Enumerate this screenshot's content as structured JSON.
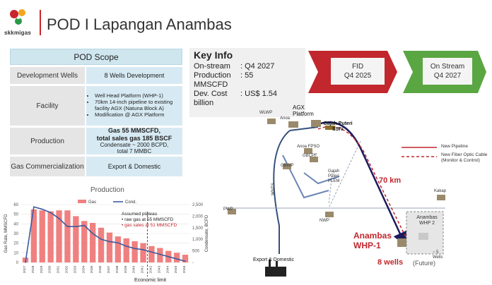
{
  "header": {
    "logo_text": "skkmigas",
    "title": "POD I Lapangan Anambas"
  },
  "pod_scope": {
    "title": "POD Scope",
    "rows": [
      {
        "label": "Development Wells",
        "value": "8 Wells Development"
      },
      {
        "label": "Facility",
        "items": [
          "Well Head Platform (WHP-1)",
          "70km 14-inch pipeline to existing facility AGX (Natuna Block A)",
          "Modification @ AGX Platform"
        ]
      },
      {
        "label": "Production",
        "line1": "Gas 55 MMSCFD,",
        "line2": "total sales gas 185 BSCF",
        "line3": "Condensate ~ 2000 BCPD,",
        "line4": "total 7 MMBC"
      },
      {
        "label": "Gas Commercialization",
        "value": "Export & Domestic"
      }
    ]
  },
  "key_info": {
    "title": "Key Info",
    "rows": [
      {
        "label": "On-stream",
        "value": ": Q4 2027"
      },
      {
        "label": "Production",
        "value": ": 55"
      },
      {
        "label": "MMSCFD",
        "value": ""
      },
      {
        "label": "Dev. Cost",
        "value": ": US$ 1.54"
      },
      {
        "label": "billion",
        "value": ""
      }
    ]
  },
  "milestones": [
    {
      "name": "FID",
      "date": "Q4 2025",
      "color": "#c1272d"
    },
    {
      "name": "On Stream",
      "date": "Q4 2027",
      "color": "#5aa642"
    }
  ],
  "chart_data": {
    "type": "bar",
    "title": "Production",
    "categories": [
      "2027",
      "2028",
      "2029",
      "2030",
      "2031",
      "2032",
      "2033",
      "2034",
      "2035",
      "2036",
      "2037",
      "2038",
      "2039",
      "2040",
      "2041",
      "2042",
      "2043",
      "2044",
      "2045",
      "2046"
    ],
    "series": [
      {
        "name": "Gas",
        "type": "bar",
        "axis": "left",
        "color": "#f08080",
        "values": [
          5,
          55,
          54,
          53,
          54,
          54,
          48,
          43,
          41,
          36,
          31,
          27,
          25,
          22,
          20,
          17,
          15,
          12,
          10,
          8
        ]
      },
      {
        "name": "Cond.",
        "type": "line",
        "axis": "right",
        "color": "#3d5a9e",
        "values": [
          0,
          2400,
          2300,
          2150,
          1900,
          1550,
          1550,
          1600,
          1250,
          1000,
          900,
          850,
          700,
          600,
          550,
          450,
          350,
          250,
          150,
          50
        ]
      }
    ],
    "ylabel": "Gas Rate, MMSCFD",
    "ylabel_right": "Condensate, BCPD",
    "ylim": [
      0,
      60
    ],
    "ylim_right": [
      0,
      2500
    ],
    "yticks": [
      0,
      10,
      20,
      30,
      40,
      50,
      60
    ],
    "yticks_right": [
      "-",
      "500",
      "1,000",
      "1,500",
      "2,000",
      "2,500"
    ],
    "legend_position": "top",
    "annotations": {
      "plateau_title": "Assumed plateau",
      "plateau_items": [
        "raw gas at 55 MMSCFD",
        "gas sales at 51 MMSCFD"
      ],
      "economic_limit": "Economic limit"
    }
  },
  "map": {
    "labels": {
      "agx": "AGX Platform",
      "ssiv": "Gajah Puteri SSIV",
      "plem": "Gajah Puteri PLEM",
      "wlwp": "WLWP",
      "anoa": "Anoa",
      "anoa_fpso": "Anoa FPSO",
      "gbcpf": "GBCPF",
      "gbwp": "GBWP",
      "wnts": "WNTS",
      "pwp": "PWP",
      "nwp": "NWP",
      "kakap": "Kakap",
      "export": "Export & Domestic",
      "distance": "70 km",
      "anambas": "Anambas WHP-1",
      "whp2": "Anambas WHP 2",
      "wells8": "8 wells",
      "future": "(Future)",
      "wells5": "~ 5 Wells"
    },
    "legend": {
      "pipeline": "New Pipeline",
      "fiber": "New Fiber Optic Cable (Monitor & Control)"
    }
  },
  "colors": {
    "accent": "#c9262c",
    "scope_blue": "#d7eaf3",
    "scope_grey": "#e5e5e5"
  }
}
